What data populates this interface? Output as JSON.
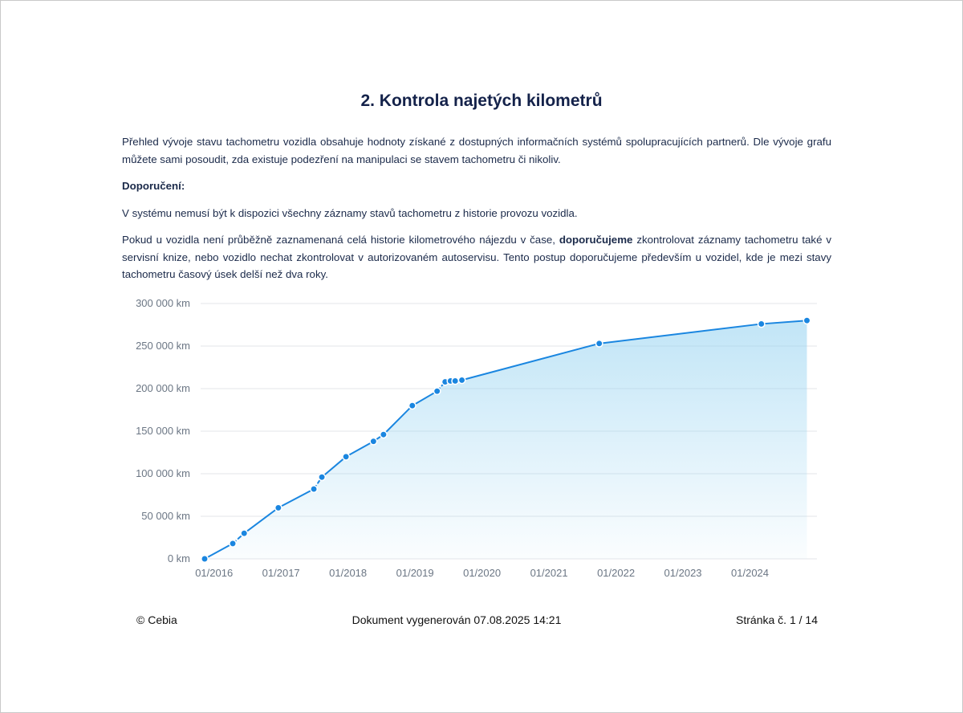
{
  "section": {
    "title": "2. Kontrola najetých kilometrů",
    "intro": "Přehled vývoje stavu tachometru vozidla obsahuje hodnoty získané z dostupných informačních systémů spolupracujících partnerů. Dle vývoje grafu můžete sami posoudit, zda existuje podezření na manipulaci se stavem tachometru či nikoliv.",
    "recommendation_heading": "Doporučení:",
    "note": "V systému nemusí být k dispozici všechny záznamy stavů tachometru z historie provozu vozidla.",
    "advice_part1": "Pokud u vozidla není průběžně zaznamenaná celá historie kilometrového nájezdu v čase,",
    "advice_bold": "doporučujeme",
    "advice_part2": "zkontrolovat záznamy tachometru také v servisní knize, nebo vozidlo nechat zkontrolovat v autorizovaném autoservisu. Tento postup doporučujeme především u vozidel, kde je mezi stavy tachometru časový úsek delší než dva roky."
  },
  "chart_data": {
    "type": "area",
    "x_tick_labels": [
      "01/2016",
      "01/2017",
      "01/2018",
      "01/2019",
      "01/2020",
      "01/2021",
      "01/2022",
      "01/2023",
      "01/2024"
    ],
    "y_tick_labels": [
      "0 km",
      "50 000 km",
      "100 000 km",
      "150 000 km",
      "200 000 km",
      "250 000 km",
      "300 000 km"
    ],
    "ylim": [
      0,
      300000
    ],
    "xlim_years": [
      2015.8,
      2025.0
    ],
    "grid": true,
    "line_color": "#1a86e0",
    "fill_color": "#8fd0f0",
    "series": [
      {
        "x": [
          2015.86,
          2016.28,
          2016.45,
          2016.96,
          2017.49,
          2017.61,
          2017.97,
          2018.38,
          2018.53,
          2018.96,
          2019.33,
          2019.45,
          2019.53,
          2019.6,
          2019.7,
          2021.75,
          2024.17,
          2024.85
        ],
        "values": [
          0,
          18000,
          30000,
          60000,
          82000,
          96000,
          120000,
          138000,
          146000,
          180000,
          197000,
          208000,
          209000,
          209000,
          210000,
          253000,
          276000,
          280000
        ],
        "dashed_segments": [
          1,
          4,
          10,
          13
        ]
      }
    ]
  },
  "footer": {
    "copyright": "© Cebia",
    "generated": "Dokument vygenerován 07.08.2025 14:21",
    "page": "Stránka č. 1 / 14"
  }
}
